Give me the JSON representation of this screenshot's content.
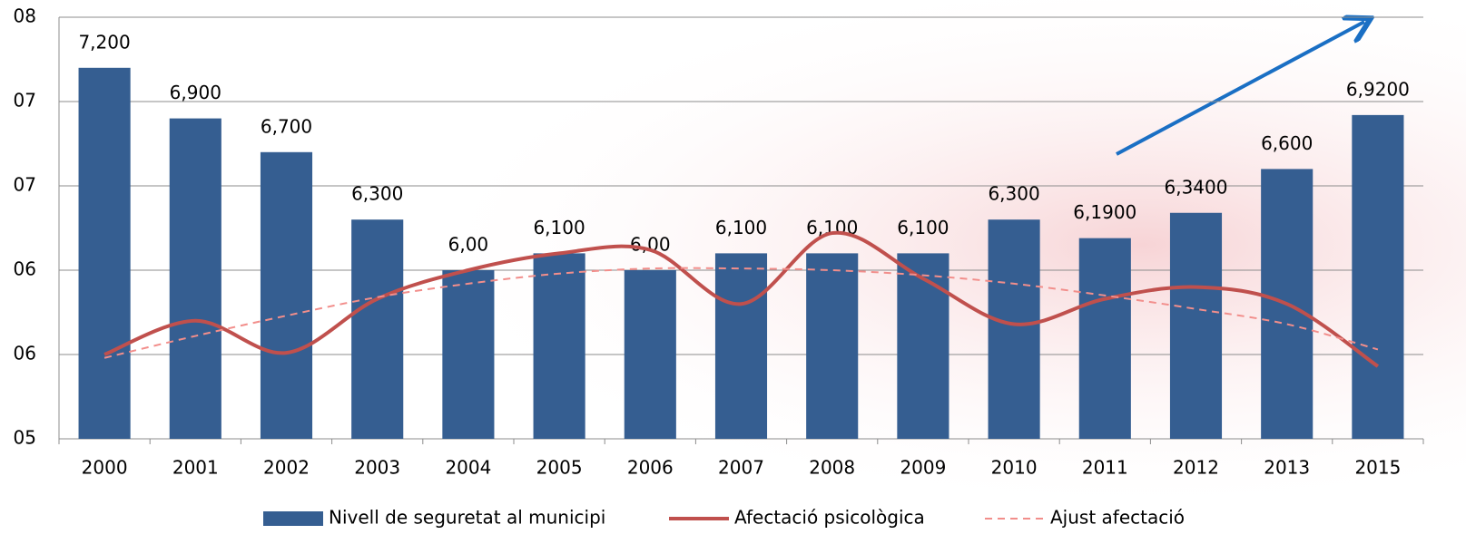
{
  "chart_data": {
    "type": "bar",
    "categories": [
      "2000",
      "2001",
      "2002",
      "2003",
      "2004",
      "2005",
      "2006",
      "2007",
      "2008",
      "2009",
      "2010",
      "2011",
      "2012",
      "2013",
      "2015"
    ],
    "ylim": [
      5,
      7.5
    ],
    "yticks": [
      {
        "value": 5,
        "label": "05"
      },
      {
        "value": 5.5,
        "label": "06"
      },
      {
        "value": 6,
        "label": "06"
      },
      {
        "value": 6.5,
        "label": "07"
      },
      {
        "value": 7,
        "label": "07"
      },
      {
        "value": 7.5,
        "label": "08"
      }
    ],
    "grid": true,
    "legend": "bottom",
    "series": [
      {
        "name": "Nivell de seguretat al municipi",
        "type": "bar",
        "color": "#355e91",
        "values": [
          7.2,
          6.9,
          6.7,
          6.3,
          6.0,
          6.1,
          6.0,
          6.1,
          6.1,
          6.1,
          6.3,
          6.19,
          6.34,
          6.6,
          6.92
        ],
        "value_labels": [
          "7,200",
          "6,900",
          "6,700",
          "6,300",
          "6,00",
          "6,100",
          "6,00",
          "6,100",
          "6,100",
          "6,100",
          "6,300",
          "6,1900",
          "6,3400",
          "6,600",
          "6,9200"
        ]
      },
      {
        "name": "Afectació psicològica",
        "type": "line",
        "color": "#c0504d",
        "values": [
          5.5,
          5.7,
          5.51,
          5.83,
          6.0,
          6.1,
          6.12,
          5.8,
          6.22,
          5.95,
          5.68,
          5.83,
          5.9,
          5.8,
          5.43
        ]
      },
      {
        "name": "Ajust afectació",
        "type": "dashed-line",
        "color": "#f28e8b",
        "values": [
          5.48,
          5.61,
          5.73,
          5.84,
          5.92,
          5.98,
          6.01,
          6.01,
          6.0,
          5.97,
          5.92,
          5.85,
          5.77,
          5.68,
          5.53
        ]
      }
    ]
  }
}
